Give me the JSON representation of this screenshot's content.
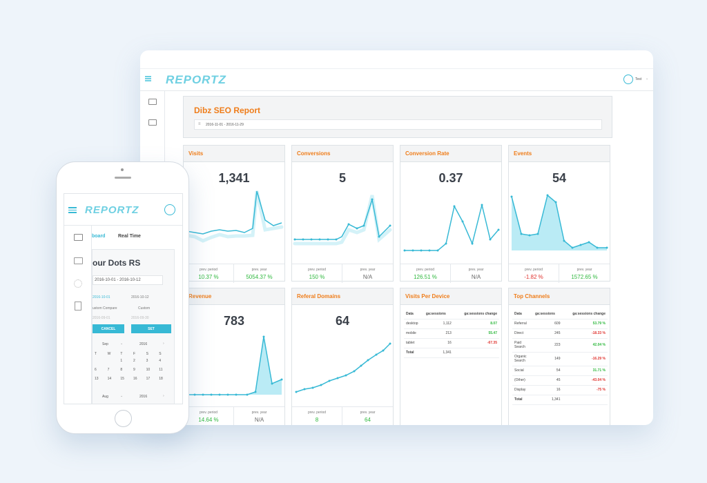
{
  "app": {
    "logo": "REPORTZ",
    "user_label": "Test"
  },
  "report": {
    "title": "Dibz SEO Report",
    "date_range": "2016-11-01 - 2016-11-29"
  },
  "labels": {
    "prev_period": "prev. period",
    "prev_year": "prev. year"
  },
  "cards": {
    "visits": {
      "title": "Visits",
      "value": "1,341",
      "prev_period": "10.37 %",
      "prev_year": "5054.37 %"
    },
    "conversions": {
      "title": "Conversions",
      "value": "5",
      "prev_period": "150 %",
      "prev_year": "N/A"
    },
    "conversion_rate": {
      "title": "Conversion Rate",
      "value": "0.37",
      "prev_period": "126.51 %",
      "prev_year": "N/A"
    },
    "events": {
      "title": "Events",
      "value": "54",
      "prev_period": "-1.82 %",
      "prev_year": "1572.65 %"
    },
    "revenue": {
      "title": "Revenue",
      "value": "783",
      "prev_period": "14.64 %",
      "prev_year": "N/A"
    },
    "referral_domains": {
      "title": "Referal Domains",
      "value": "64",
      "prev_period": "8",
      "prev_year": "64"
    }
  },
  "visits_per_device": {
    "title": "Visits Per Device",
    "headers": [
      "Data",
      "ga:sessions",
      "ga:sessions change"
    ],
    "rows": [
      {
        "label": "desktop",
        "sessions": "1,112",
        "change": "8.07",
        "positive": true
      },
      {
        "label": "mobile",
        "sessions": "213",
        "change": "55.47",
        "positive": true
      },
      {
        "label": "tablet",
        "sessions": "16",
        "change": "-67.35",
        "positive": false
      }
    ],
    "total": {
      "label": "Total",
      "sessions": "1,341"
    }
  },
  "top_channels": {
    "title": "Top Channels",
    "headers": [
      "Data",
      "ga:sessions",
      "ga:sessions change"
    ],
    "rows": [
      {
        "label": "Referral",
        "sessions": "609",
        "change": "53.79 %",
        "positive": true
      },
      {
        "label": "Direct",
        "sessions": "245",
        "change": "-18.33 %",
        "positive": false
      },
      {
        "label": "Paid Search",
        "sessions": "223",
        "change": "42.04 %",
        "positive": true
      },
      {
        "label": "Organic Search",
        "sessions": "149",
        "change": "-16.29 %",
        "positive": false
      },
      {
        "label": "Social",
        "sessions": "54",
        "change": "31.71 %",
        "positive": true
      },
      {
        "label": "(Other)",
        "sessions": "45",
        "change": "-43.04 %",
        "positive": false
      },
      {
        "label": "Display",
        "sessions": "16",
        "change": "-75 %",
        "positive": false
      }
    ],
    "total": {
      "label": "Total",
      "sessions": "1,341"
    }
  },
  "phone": {
    "tab_dashboard": "board",
    "tab_realtime": "Real Time",
    "title": "our Dots RS",
    "date_range": "2016-10-01 - 2016-10-12",
    "from_date": "2016-10-01",
    "to_date": "2016-10-12",
    "compare": "ustom Compare",
    "custom": "Custom",
    "compare_from": "2016-09-01",
    "compare_to": "2016-09-30",
    "cancel": "CANCEL",
    "set": "SET",
    "cal_month": "Sep",
    "cal_year": "2016",
    "cal_month2": "Aug",
    "cal_year2": "2016",
    "weekdays": [
      "T",
      "W",
      "T",
      "F",
      "S",
      "S"
    ],
    "weeks": [
      [
        "",
        "",
        "1",
        "2",
        "3",
        "4"
      ],
      [
        "6",
        "7",
        "8",
        "9",
        "10",
        "11"
      ],
      [
        "13",
        "14",
        "15",
        "16",
        "17",
        "18"
      ]
    ]
  },
  "colors": {
    "accent": "#37b9d5",
    "title_orange": "#ef7d1a",
    "positive": "#2eb83d",
    "negative": "#e0332f"
  }
}
